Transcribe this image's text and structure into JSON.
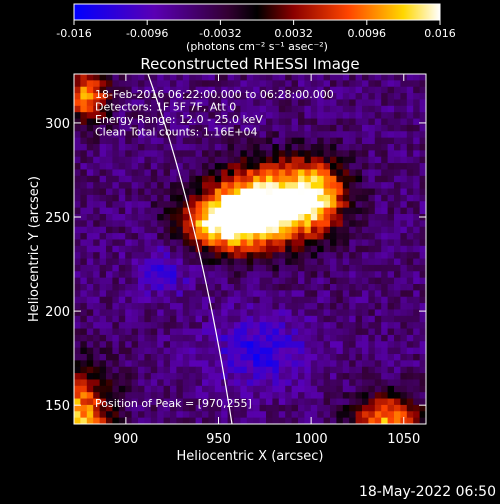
{
  "colorbar": {
    "ticks": [
      "-0.016",
      "-0.0096",
      "-0.0032",
      "0.0032",
      "0.0096",
      "0.016"
    ],
    "unit": "(photons cm⁻² s⁻¹ asec⁻²)",
    "colors": [
      "#0000ff",
      "#5a00b4",
      "#330033",
      "#000000",
      "#8b0000",
      "#ff4500",
      "#ffd700",
      "#ffffff"
    ]
  },
  "image": {
    "title": "Reconstructed RHESSI Image",
    "info_lines": [
      "18-Feb-2016 06:22:00.000 to 06:28:00.000",
      "Detectors: 1F 5F 7F, Att 0",
      "Energy Range: 12.0 - 25.0 keV",
      "Clean     Total counts: 1.16E+04"
    ],
    "peak_label": "Position of Peak = [970,255]",
    "timestamp": "18-May-2022 06:50"
  },
  "chart_data": {
    "type": "heatmap",
    "title": "Reconstructed RHESSI Image",
    "xlabel": "Heliocentric X (arcsec)",
    "ylabel": "Heliocentric Y (arcsec)",
    "xlim": [
      872,
      1062
    ],
    "ylim": [
      140,
      326
    ],
    "xticks": [
      900,
      950,
      1000,
      1050
    ],
    "yticks": [
      150,
      200,
      250,
      300
    ],
    "peak": [
      970,
      255
    ],
    "colorbar_range": [
      -0.016,
      0.016
    ]
  }
}
